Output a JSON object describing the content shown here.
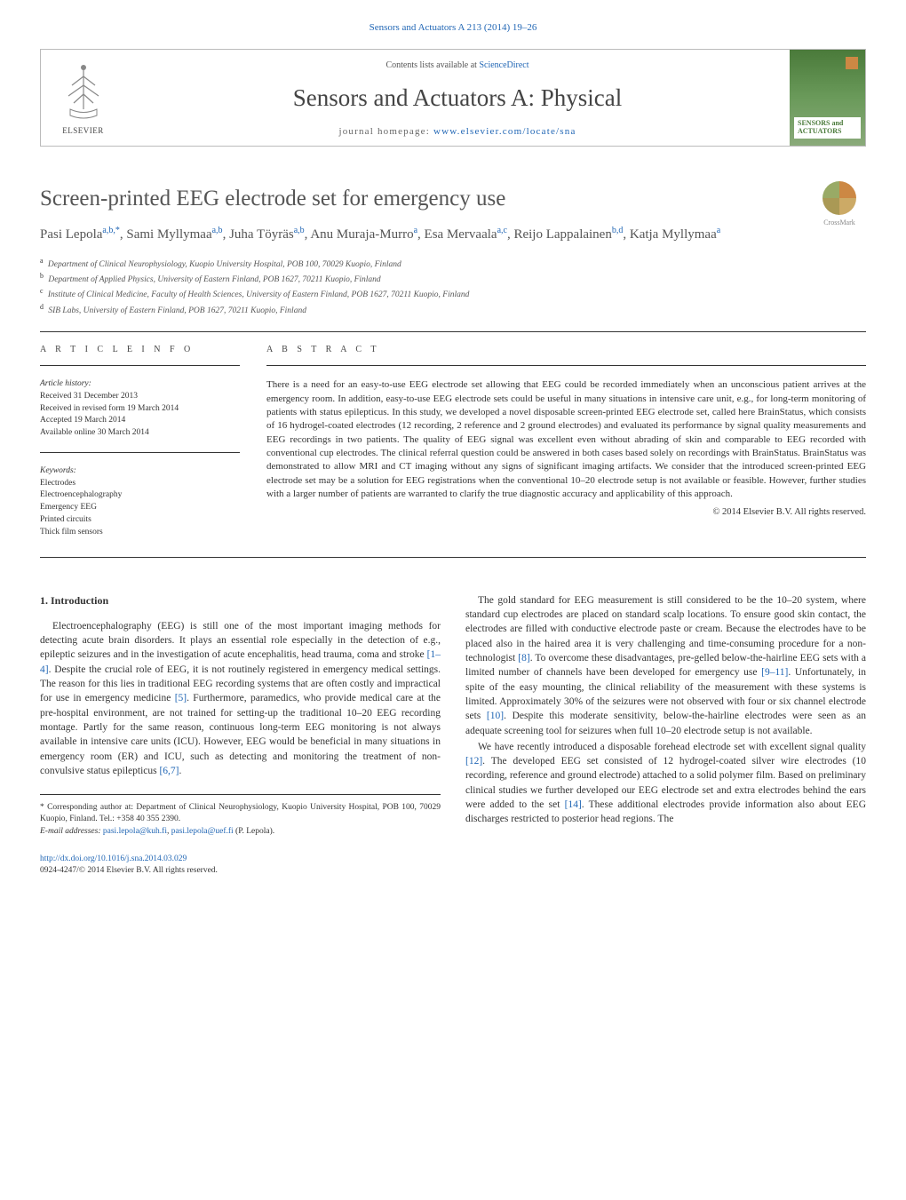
{
  "topLink": "Sensors and Actuators A 213 (2014) 19–26",
  "header": {
    "contentsPrefix": "Contents lists available at ",
    "contentsLink": "ScienceDirect",
    "journalTitle": "Sensors and Actuators A: Physical",
    "homepagePrefix": "journal homepage: ",
    "homepageUrl": "www.elsevier.com/locate/sna",
    "publisher": "ELSEVIER",
    "coverLabel": "SENSORS and ACTUATORS"
  },
  "crossmark": "CrossMark",
  "title": "Screen-printed EEG electrode set for emergency use",
  "authors": [
    {
      "name": "Pasi Lepola",
      "affRef": "a,b,",
      "corr": "*"
    },
    {
      "name": "Sami Myllymaa",
      "affRef": "a,b"
    },
    {
      "name": "Juha Töyräs",
      "affRef": "a,b"
    },
    {
      "name": "Anu Muraja-Murro",
      "affRef": "a"
    },
    {
      "name": "Esa Mervaala",
      "affRef": "a,c"
    },
    {
      "name": "Reijo Lappalainen",
      "affRef": "b,d"
    },
    {
      "name": "Katja Myllymaa",
      "affRef": "a"
    }
  ],
  "affiliations": [
    {
      "key": "a",
      "text": "Department of Clinical Neurophysiology, Kuopio University Hospital, POB 100, 70029 Kuopio, Finland"
    },
    {
      "key": "b",
      "text": "Department of Applied Physics, University of Eastern Finland, POB 1627, 70211 Kuopio, Finland"
    },
    {
      "key": "c",
      "text": "Institute of Clinical Medicine, Faculty of Health Sciences, University of Eastern Finland, POB 1627, 70211 Kuopio, Finland"
    },
    {
      "key": "d",
      "text": "SIB Labs, University of Eastern Finland, POB 1627, 70211 Kuopio, Finland"
    }
  ],
  "articleInfo": {
    "label": "A R T I C L E   I N F O",
    "historyHead": "Article history:",
    "history": [
      "Received 31 December 2013",
      "Received in revised form 19 March 2014",
      "Accepted 19 March 2014",
      "Available online 30 March 2014"
    ],
    "keywordsHead": "Keywords:",
    "keywords": [
      "Electrodes",
      "Electroencephalography",
      "Emergency EEG",
      "Printed circuits",
      "Thick film sensors"
    ]
  },
  "abstract": {
    "label": "A B S T R A C T",
    "text": "There is a need for an easy-to-use EEG electrode set allowing that EEG could be recorded immediately when an unconscious patient arrives at the emergency room. In addition, easy-to-use EEG electrode sets could be useful in many situations in intensive care unit, e.g., for long-term monitoring of patients with status epilepticus. In this study, we developed a novel disposable screen-printed EEG electrode set, called here BrainStatus, which consists of 16 hydrogel-coated electrodes (12 recording, 2 reference and 2 ground electrodes) and evaluated its performance by signal quality measurements and EEG recordings in two patients. The quality of EEG signal was excellent even without abrading of skin and comparable to EEG recorded with conventional cup electrodes. The clinical referral question could be answered in both cases based solely on recordings with BrainStatus. BrainStatus was demonstrated to allow MRI and CT imaging without any signs of significant imaging artifacts. We consider that the introduced screen-printed EEG electrode set may be a solution for EEG registrations when the conventional 10–20 electrode setup is not available or feasible. However, further studies with a larger number of patients are warranted to clarify the true diagnostic accuracy and applicability of this approach.",
    "copyright": "© 2014 Elsevier B.V. All rights reserved."
  },
  "intro": {
    "heading": "1. Introduction",
    "p1a": "Electroencephalography (EEG) is still one of the most important imaging methods for detecting acute brain disorders. It plays an essential role especially in the detection of e.g., epileptic seizures and in the investigation of acute encephalitis, head trauma, coma and stroke ",
    "r1": "[1–4]",
    "p1b": ". Despite the crucial role of EEG, it is not routinely registered in emergency medical settings. The reason for this lies in traditional EEG recording systems that are often costly and impractical for use in emergency medicine ",
    "r2": "[5]",
    "p1c": ". Furthermore, paramedics, who provide medical care at the pre-hospital environment, are not trained for setting-up the traditional 10–20 EEG recording montage. Partly for the same reason, continuous long-term EEG monitoring is not always available in intensive care units (ICU). However, EEG would be beneficial in many situations in emergency room (ER) and ICU, such as detecting and monitoring the treatment of non-convulsive status epilepticus ",
    "r3": "[6,7]",
    "p1d": ".",
    "p2a": "The gold standard for EEG measurement is still considered to be the 10–20 system, where standard cup electrodes are placed on standard scalp locations. To ensure good skin contact, the electrodes are filled with conductive electrode paste or cream. Because the electrodes have to be placed also in the haired area it is very challenging and time-consuming procedure for a non-technologist ",
    "r4": "[8]",
    "p2b": ". To overcome these disadvantages, pre-gelled below-the-hairline EEG sets with a limited number of channels have been developed for emergency use ",
    "r5": "[9–11]",
    "p2c": ". Unfortunately, in spite of the easy mounting, the clinical reliability of the measurement with these systems is limited. Approximately 30% of the seizures were not observed with four or six channel electrode sets ",
    "r6": "[10]",
    "p2d": ". Despite this moderate sensitivity, below-the-hairline electrodes were seen as an adequate screening tool for seizures when full 10–20 electrode setup is not available.",
    "p3a": "We have recently introduced a disposable forehead electrode set with excellent signal quality ",
    "r7": "[12]",
    "p3b": ". The developed EEG set consisted of 12 hydrogel-coated silver wire electrodes (10 recording, reference and ground electrode) attached to a solid polymer film. Based on preliminary clinical studies we further developed our EEG electrode set and extra electrodes behind the ears were added to the set ",
    "r8": "[14]",
    "p3c": ". These additional electrodes provide information also about EEG discharges restricted to posterior head regions. The"
  },
  "footnote": {
    "corrLabel": "* Corresponding author at: Department of Clinical Neurophysiology, Kuopio University Hospital, POB 100, 70029 Kuopio, Finland. Tel.: +358 40 355 2390.",
    "emailLabel": "E-mail addresses: ",
    "email1": "pasi.lepola@kuh.fi",
    "email2": "pasi.lepola@uef.fi",
    "emailSuffix": " (P. Lepola)."
  },
  "footer": {
    "doi": "http://dx.doi.org/10.1016/j.sna.2014.03.029",
    "issn": "0924-4247/© 2014 Elsevier B.V. All rights reserved."
  },
  "styling": {
    "pageWidth": 1020,
    "pageHeight": 1351,
    "linkColor": "#2267b5",
    "textColor": "#333333",
    "headingColor": "#555555",
    "ruleColor": "#333333",
    "coverGradient": [
      "#4a7a3a",
      "#6a9a5a",
      "#8aaa7a"
    ],
    "bodyFont": "Georgia, Times New Roman, serif",
    "bodyFontSize": 11.5,
    "titleFontSize": 25,
    "journalTitleFontSize": 27,
    "authorsFontSize": 15,
    "affilFontSize": 9.5,
    "abstractFontSize": 11,
    "columnGap": 28,
    "columnCount": 2
  }
}
